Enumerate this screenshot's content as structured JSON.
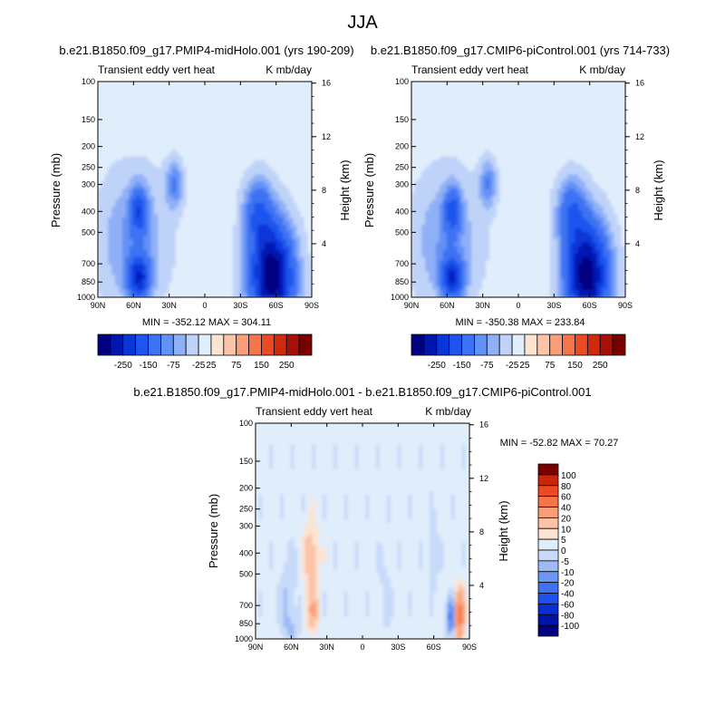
{
  "figure": {
    "title": "JJA"
  },
  "chart_data": [
    {
      "type": "heatmap",
      "title": "b.e21.B1850.f09_g17.PMIP4-midHolo.001 (yrs 190-209)",
      "subtitle_left": "Transient eddy vert heat",
      "subtitle_right": "K mb/day",
      "ylabel": "Pressure (mb)",
      "ylabel_right": "Height (km)",
      "xlabel": "",
      "x_ticks": [
        "90N",
        "60N",
        "30N",
        "0",
        "30S",
        "60S",
        "90S"
      ],
      "x_values": [
        90,
        60,
        30,
        0,
        -30,
        -60,
        -90
      ],
      "y_ticks": [
        "100",
        "150",
        "200",
        "250",
        "300",
        "400",
        "500",
        "700",
        "850",
        "1000"
      ],
      "y_values": [
        100,
        150,
        200,
        250,
        300,
        400,
        500,
        700,
        850,
        1000
      ],
      "y_log_scale": true,
      "height_ticks": [
        "16",
        "12",
        "8",
        "4"
      ],
      "height_values": [
        16,
        12,
        8,
        4
      ],
      "stats": "MIN = -352.12  MAX = 304.11",
      "min": -352.12,
      "max": 304.11,
      "colorbar_labels": [
        "-250",
        "-150",
        "-75",
        "-25",
        "25",
        "75",
        "150",
        "250"
      ],
      "levels": [
        -300,
        -250,
        -200,
        -150,
        -100,
        -75,
        -50,
        -25,
        25,
        50,
        75,
        100,
        150,
        200,
        250,
        300
      ],
      "colors": [
        "#000080",
        "#0016b0",
        "#0836d8",
        "#1d55ee",
        "#3c72f3",
        "#6391f6",
        "#8fb0f7",
        "#bfd3f9",
        "#e0edfb",
        "#fde3d2",
        "#fcc3a6",
        "#f89f79",
        "#f57548",
        "#ec4a22",
        "#cf2a0d",
        "#a51106",
        "#7a0000"
      ]
    },
    {
      "type": "heatmap",
      "title": "b.e21.B1850.f09_g17.CMIP6-piControl.001 (yrs 714-733)",
      "subtitle_left": "Transient eddy vert heat",
      "subtitle_right": "K mb/day",
      "ylabel": "Pressure (mb)",
      "ylabel_right": "Height (km)",
      "xlabel": "",
      "x_ticks": [
        "90N",
        "60N",
        "30N",
        "0",
        "30S",
        "60S",
        "90S"
      ],
      "x_values": [
        90,
        60,
        30,
        0,
        -30,
        -60,
        -90
      ],
      "y_ticks": [
        "100",
        "150",
        "200",
        "250",
        "300",
        "400",
        "500",
        "700",
        "850",
        "1000"
      ],
      "y_values": [
        100,
        150,
        200,
        250,
        300,
        400,
        500,
        700,
        850,
        1000
      ],
      "y_log_scale": true,
      "height_ticks": [
        "16",
        "12",
        "8",
        "4"
      ],
      "height_values": [
        16,
        12,
        8,
        4
      ],
      "stats": "MIN = -350.38  MAX = 233.84",
      "min": -350.38,
      "max": 233.84,
      "colorbar_labels": [
        "-250",
        "-150",
        "-75",
        "-25",
        "25",
        "75",
        "150",
        "250"
      ],
      "levels": [
        -300,
        -250,
        -200,
        -150,
        -100,
        -75,
        -50,
        -25,
        25,
        50,
        75,
        100,
        150,
        200,
        250,
        300
      ],
      "colors": [
        "#000080",
        "#0016b0",
        "#0836d8",
        "#1d55ee",
        "#3c72f3",
        "#6391f6",
        "#8fb0f7",
        "#bfd3f9",
        "#e0edfb",
        "#fde3d2",
        "#fcc3a6",
        "#f89f79",
        "#f57548",
        "#ec4a22",
        "#cf2a0d",
        "#a51106",
        "#7a0000"
      ]
    },
    {
      "type": "heatmap",
      "title": "b.e21.B1850.f09_g17.PMIP4-midHolo.001 - b.e21.B1850.f09_g17.CMIP6-piControl.001",
      "subtitle_left": "Transient eddy vert heat",
      "subtitle_right": "K mb/day",
      "ylabel": "Pressure (mb)",
      "ylabel_right": "Height (km)",
      "xlabel": "",
      "x_ticks": [
        "90N",
        "60N",
        "30N",
        "0",
        "30S",
        "60S",
        "90S"
      ],
      "x_values": [
        90,
        60,
        30,
        0,
        -30,
        -60,
        -90
      ],
      "y_ticks": [
        "100",
        "150",
        "200",
        "250",
        "300",
        "400",
        "500",
        "700",
        "850",
        "1000"
      ],
      "y_values": [
        100,
        150,
        200,
        250,
        300,
        400,
        500,
        700,
        850,
        1000
      ],
      "y_log_scale": true,
      "height_ticks": [
        "16",
        "12",
        "8",
        "4"
      ],
      "height_values": [
        16,
        12,
        8,
        4
      ],
      "stats": "MIN = -52.82  MAX =  70.27",
      "min": -52.82,
      "max": 70.27,
      "colorbar_labels": [
        "100",
        "80",
        "60",
        "40",
        "20",
        "10",
        "5",
        "0",
        "-5",
        "-10",
        "-20",
        "-40",
        "-60",
        "-80",
        "-100"
      ],
      "levels": [
        -100,
        -80,
        -60,
        -40,
        -20,
        -10,
        -5,
        0,
        5,
        10,
        20,
        40,
        60,
        80,
        100
      ],
      "colors": [
        "#000080",
        "#0014a8",
        "#0a2fd0",
        "#1e50ec",
        "#3e72f2",
        "#6d97f5",
        "#9dbbf7",
        "#c8daf9",
        "#e0edfb",
        "#fde3d2",
        "#fcc3a6",
        "#f89f79",
        "#f57548",
        "#ec4a22",
        "#c8250b",
        "#7a0000"
      ]
    }
  ]
}
